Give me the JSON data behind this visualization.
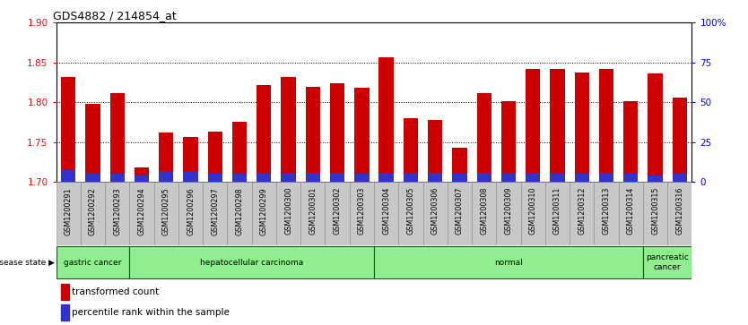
{
  "title": "GDS4882 / 214854_at",
  "samples": [
    "GSM1200291",
    "GSM1200292",
    "GSM1200293",
    "GSM1200294",
    "GSM1200295",
    "GSM1200296",
    "GSM1200297",
    "GSM1200298",
    "GSM1200299",
    "GSM1200300",
    "GSM1200301",
    "GSM1200302",
    "GSM1200303",
    "GSM1200304",
    "GSM1200305",
    "GSM1200306",
    "GSM1200307",
    "GSM1200308",
    "GSM1200309",
    "GSM1200310",
    "GSM1200311",
    "GSM1200312",
    "GSM1200313",
    "GSM1200314",
    "GSM1200315",
    "GSM1200316"
  ],
  "transformed_count": [
    1.832,
    1.798,
    1.812,
    1.718,
    1.762,
    1.757,
    1.763,
    1.776,
    1.822,
    1.832,
    1.82,
    1.824,
    1.818,
    1.857,
    1.78,
    1.778,
    1.743,
    1.812,
    1.802,
    1.842,
    1.842,
    1.838,
    1.842,
    1.802,
    1.836,
    1.806
  ],
  "percentile_rank": [
    8,
    5,
    5,
    4,
    7,
    7,
    5,
    5,
    6,
    6,
    6,
    6,
    5,
    6,
    6,
    6,
    5,
    6,
    5,
    6,
    5,
    5,
    6,
    5,
    4,
    5
  ],
  "group_boundaries": [
    [
      0,
      3,
      "gastric cancer"
    ],
    [
      3,
      13,
      "hepatocellular carcinoma"
    ],
    [
      13,
      24,
      "normal"
    ],
    [
      24,
      26,
      "pancreatic\ncancer"
    ]
  ],
  "ylim_left": [
    1.7,
    1.9
  ],
  "yticks_left": [
    1.7,
    1.75,
    1.8,
    1.85,
    1.9
  ],
  "ylim_right": [
    0,
    100
  ],
  "yticks_right": [
    0,
    25,
    50,
    75,
    100
  ],
  "ytick_labels_right": [
    "0",
    "25",
    "50",
    "75",
    "100%"
  ],
  "bar_color_red": "#CC0000",
  "bar_color_blue": "#3333CC",
  "bar_width": 0.6,
  "cell_color": "#C8C8C8",
  "group_color": "#90EE90",
  "group_border": "#006600"
}
